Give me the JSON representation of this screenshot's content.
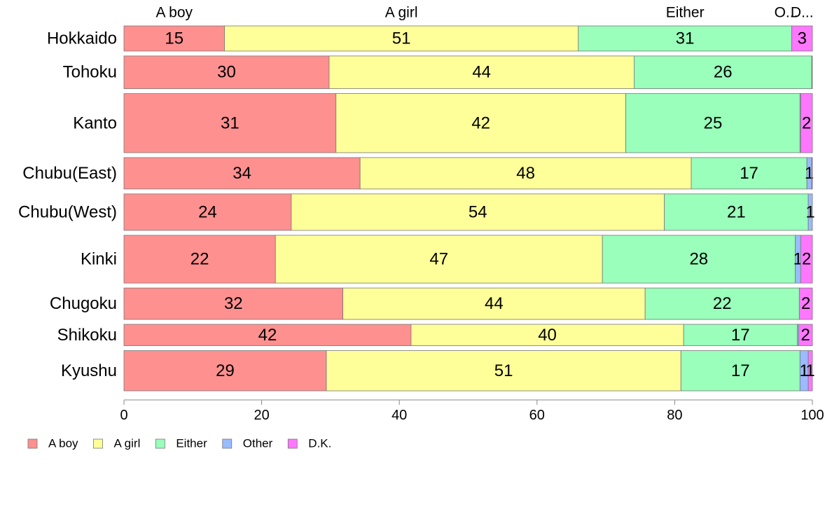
{
  "chart_data": {
    "type": "bar",
    "orientation": "horizontal",
    "stacked": true,
    "categories": [
      "Hokkaido",
      "Tohoku",
      "Kanto",
      "Chubu(East)",
      "Chubu(West)",
      "Kinki",
      "Chugoku",
      "Shikoku",
      "Kyushu"
    ],
    "series": [
      {
        "name": "A boy",
        "color": "#ff9090",
        "values": [
          14.6,
          29.8,
          30.8,
          34.3,
          24.3,
          22.0,
          31.8,
          41.7,
          29.4
        ]
      },
      {
        "name": "A girl",
        "color": "#ffff99",
        "values": [
          51.4,
          44.3,
          42.1,
          48.1,
          54.2,
          47.5,
          43.9,
          39.6,
          51.5
        ]
      },
      {
        "name": "Either",
        "color": "#99ffbb",
        "values": [
          31.0,
          25.8,
          25.3,
          16.8,
          20.9,
          28.0,
          22.4,
          16.5,
          17.3
        ]
      },
      {
        "name": "Other",
        "color": "#99bbff",
        "values": [
          0.0,
          0.1,
          0.1,
          0.7,
          0.6,
          0.8,
          0.0,
          0.2,
          1.2
        ]
      },
      {
        "name": "D.K.",
        "color": "#ff77ff",
        "values": [
          3.0,
          0.0,
          1.7,
          0.1,
          0.0,
          1.7,
          1.9,
          2.0,
          0.6
        ]
      }
    ],
    "data_labels": [
      [
        "15",
        "51",
        "31",
        "",
        "3"
      ],
      [
        "30",
        "44",
        "26",
        "",
        ""
      ],
      [
        "31",
        "42",
        "25",
        "",
        "2"
      ],
      [
        "34",
        "48",
        "17",
        "1",
        ""
      ],
      [
        "24",
        "54",
        "21",
        "1",
        ""
      ],
      [
        "22",
        "47",
        "28",
        "1",
        "2"
      ],
      [
        "32",
        "44",
        "22",
        "",
        "2"
      ],
      [
        "42",
        "40",
        "17",
        "",
        "2"
      ],
      [
        "29",
        "51",
        "17",
        "1",
        "1"
      ]
    ],
    "row_weights": [
      1,
      1.3,
      2.35,
      1.25,
      1.45,
      1.9,
      1.25,
      0.85,
      1.6
    ],
    "top_labels": [
      "A boy",
      "A girl",
      "Either",
      "O...",
      "D..."
    ],
    "xlim": [
      0,
      100
    ],
    "xticks": [
      "0",
      "20",
      "40",
      "60",
      "80",
      "100"
    ],
    "legend_position": "bottom-left",
    "grid": false
  }
}
